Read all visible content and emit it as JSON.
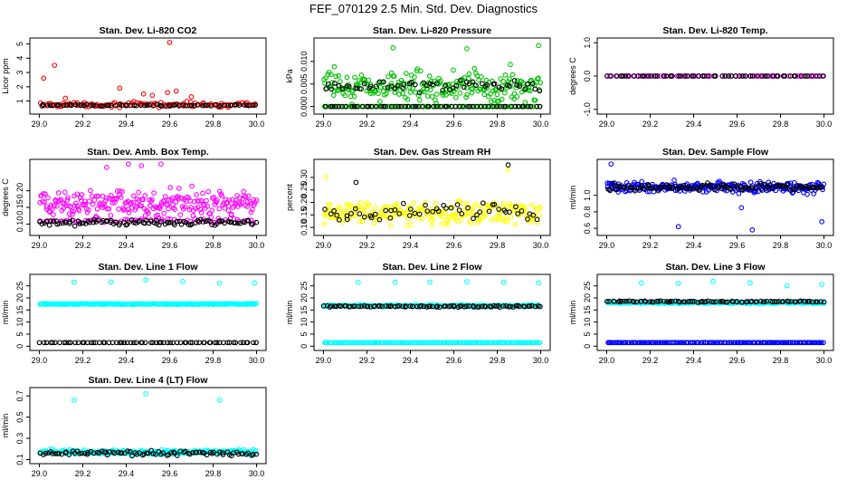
{
  "page_title": "FEF_070129  2.5 Min. Std. Dev. Diagnostics",
  "colors": {
    "red": "#ff0000",
    "green": "#00c000",
    "magenta": "#ff00ff",
    "yellow": "#ffff00",
    "blue": "#0000ff",
    "cyan": "#00ffff",
    "black": "#000000"
  },
  "chart_data": [
    {
      "type": "scatter",
      "title": "Stan. Dev. Li-820 CO2",
      "ylabel": "Licor ppm",
      "xlim": [
        29.0,
        30.0
      ],
      "ylim": [
        0.3,
        5.2
      ],
      "xticks": [
        "29.0",
        "29.2",
        "29.4",
        "29.6",
        "29.8",
        "30.0"
      ],
      "yticks": [
        "1",
        "2",
        "3",
        "4",
        "5"
      ],
      "series": [
        {
          "color": "red",
          "base": 0.75,
          "spread": 0.25,
          "n": 110,
          "outliers": [
            [
              29.02,
              2.6
            ],
            [
              29.07,
              3.5
            ],
            [
              29.6,
              5.1
            ],
            [
              29.37,
              1.9
            ],
            [
              29.48,
              1.5
            ],
            [
              29.59,
              1.6
            ],
            [
              29.63,
              1.7
            ],
            [
              29.12,
              1.2
            ],
            [
              29.52,
              1.4
            ],
            [
              29.7,
              1.3
            ]
          ]
        },
        {
          "color": "black",
          "base": 0.7,
          "spread": 0.08,
          "n": 70,
          "outliers": []
        }
      ]
    },
    {
      "type": "scatter",
      "title": "Stan. Dev. Li-820 Pressure",
      "ylabel": "kPa",
      "xlim": [
        29.0,
        30.0
      ],
      "ylim": [
        -0.001,
        0.0145
      ],
      "xticks": [
        "29.0",
        "29.2",
        "29.4",
        "29.6",
        "29.8",
        "30.0"
      ],
      "yticks": [
        "0.000",
        "0.005",
        "0.010"
      ],
      "series": [
        {
          "color": "green",
          "base": 0.0045,
          "spread": 0.0045,
          "n": 230,
          "outliers": [
            [
              29.32,
              0.013
            ],
            [
              29.66,
              0.0128
            ],
            [
              29.99,
              0.0135
            ],
            [
              29.86,
              0.0093
            ],
            [
              29.05,
              0.0088
            ]
          ]
        },
        {
          "color": "green",
          "base": 0.0,
          "spread": 0.0,
          "n": 80,
          "outliers": []
        },
        {
          "color": "black",
          "base": 0.0,
          "spread": 0.0,
          "n": 60,
          "outliers": []
        },
        {
          "color": "black",
          "base": 0.0045,
          "spread": 0.0015,
          "n": 60,
          "outliers": []
        }
      ]
    },
    {
      "type": "scatter",
      "title": "Stan. Dev. Li-820 Temp.",
      "ylabel": "degrees C",
      "xlim": [
        29.0,
        30.0
      ],
      "ylim": [
        -1.05,
        1.05
      ],
      "xticks": [
        "29.0",
        "29.2",
        "29.4",
        "29.6",
        "29.8",
        "30.0"
      ],
      "yticks": [
        "-1.0",
        "0.0",
        "1.0"
      ],
      "series": [
        {
          "color": "magenta",
          "base": 0.0,
          "spread": 0.0,
          "n": 60,
          "outliers": []
        },
        {
          "color": "black",
          "base": 0.0,
          "spread": 0.0,
          "n": 60,
          "outliers": []
        }
      ]
    },
    {
      "type": "scatter",
      "title": "Stan. Dev. Amb. Box Temp.",
      "ylabel": "degrees C",
      "xlim": [
        29.0,
        30.0
      ],
      "ylim": [
        0.075,
        0.285
      ],
      "xticks": [
        "29.0",
        "29.2",
        "29.4",
        "29.6",
        "29.8",
        "30.0"
      ],
      "yticks": [
        "0.10",
        "0.15",
        "0.20"
      ],
      "series": [
        {
          "color": "magenta",
          "base": 0.16,
          "spread": 0.06,
          "n": 240,
          "outliers": [
            [
              29.41,
              0.28
            ],
            [
              29.47,
              0.275
            ],
            [
              29.56,
              0.28
            ],
            [
              29.31,
              0.27
            ]
          ]
        },
        {
          "color": "magenta",
          "base": 0.11,
          "spread": 0.01,
          "n": 60,
          "outliers": []
        },
        {
          "color": "black",
          "base": 0.105,
          "spread": 0.012,
          "n": 100,
          "outliers": []
        }
      ]
    },
    {
      "type": "scatter",
      "title": "Stan. Dev. Gas Stream RH",
      "ylabel": "percent",
      "xlim": [
        29.0,
        30.0
      ],
      "ylim": [
        0.08,
        0.36
      ],
      "xticks": [
        "29.0",
        "29.2",
        "29.4",
        "29.6",
        "29.8",
        "30.0"
      ],
      "yticks": [
        "0.10",
        "0.15",
        "0.20",
        "0.25",
        "0.30"
      ],
      "series": [
        {
          "color": "yellow",
          "base": 0.16,
          "spread": 0.065,
          "n": 240,
          "outliers": [
            [
              29.01,
              0.3
            ],
            [
              29.5,
              0.11
            ],
            [
              29.85,
              0.33
            ]
          ]
        },
        {
          "color": "black",
          "base": 0.16,
          "spread": 0.06,
          "n": 55,
          "outliers": [
            [
              29.85,
              0.35
            ],
            [
              29.15,
              0.28
            ]
          ]
        }
      ]
    },
    {
      "type": "scatter",
      "title": "Stan. Dev. Sample Flow",
      "ylabel": "ml/min",
      "xlim": [
        29.0,
        30.0
      ],
      "ylim": [
        0.55,
        1.4
      ],
      "xticks": [
        "29.0",
        "29.2",
        "29.4",
        "29.6",
        "29.8",
        "30.0"
      ],
      "yticks": [
        "0.6",
        "0.8",
        "1.0"
      ],
      "series": [
        {
          "color": "blue",
          "base": 1.1,
          "spread": 0.1,
          "n": 260,
          "outliers": [
            [
              29.33,
              0.62
            ],
            [
              29.67,
              0.58
            ],
            [
              29.99,
              0.68
            ],
            [
              29.62,
              0.85
            ],
            [
              29.02,
              1.38
            ]
          ]
        },
        {
          "color": "black",
          "base": 1.1,
          "spread": 0.06,
          "n": 100,
          "outliers": []
        }
      ]
    },
    {
      "type": "scatter",
      "title": "Stan. Dev. Line 1 Flow",
      "ylabel": "ml/min",
      "xlim": [
        29.0,
        30.0
      ],
      "ylim": [
        -0.5,
        28.5
      ],
      "xticks": [
        "29.0",
        "29.2",
        "29.4",
        "29.6",
        "29.8",
        "30.0"
      ],
      "yticks": [
        "0",
        "5",
        "10",
        "15",
        "20",
        "25"
      ],
      "series": [
        {
          "color": "cyan",
          "base": 17.5,
          "spread": 0.3,
          "n": 220,
          "outliers": [
            [
              29.16,
              26.5
            ],
            [
              29.33,
              26.6
            ],
            [
              29.49,
              27.5
            ],
            [
              29.66,
              26.8
            ],
            [
              29.83,
              26.1
            ],
            [
              29.99,
              26.2
            ]
          ]
        },
        {
          "color": "black",
          "base": 1.5,
          "spread": 0.0,
          "n": 70,
          "outliers": []
        }
      ]
    },
    {
      "type": "scatter",
      "title": "Stan. Dev. Line 2 Flow",
      "ylabel": "ml/min",
      "xlim": [
        29.0,
        30.0
      ],
      "ylim": [
        -0.5,
        28.5
      ],
      "xticks": [
        "29.0",
        "29.2",
        "29.4",
        "29.6",
        "29.8",
        "30.0"
      ],
      "yticks": [
        "0",
        "5",
        "10",
        "15",
        "20",
        "25"
      ],
      "series": [
        {
          "color": "cyan",
          "base": 16.8,
          "spread": 0.6,
          "n": 160,
          "outliers": [
            [
              29.16,
              26.4
            ],
            [
              29.33,
              26.5
            ],
            [
              29.49,
              26.6
            ],
            [
              29.66,
              26.7
            ],
            [
              29.83,
              26.5
            ],
            [
              29.99,
              26.3
            ]
          ]
        },
        {
          "color": "cyan",
          "base": 1.5,
          "spread": 0.0,
          "n": 150,
          "outliers": []
        },
        {
          "color": "black",
          "base": 16.5,
          "spread": 0.5,
          "n": 90,
          "outliers": []
        }
      ]
    },
    {
      "type": "scatter",
      "title": "Stan. Dev. Line 3 Flow",
      "ylabel": "ml/min",
      "xlim": [
        29.0,
        30.0
      ],
      "ylim": [
        -0.5,
        28.5
      ],
      "xticks": [
        "29.0",
        "29.2",
        "29.4",
        "29.6",
        "29.8",
        "30.0"
      ],
      "yticks": [
        "0",
        "5",
        "10",
        "15",
        "20",
        "25"
      ],
      "series": [
        {
          "color": "cyan",
          "base": 18.0,
          "spread": 0.5,
          "n": 160,
          "outliers": [
            [
              29.16,
              26.2
            ],
            [
              29.33,
              26.0
            ],
            [
              29.49,
              26.9
            ],
            [
              29.66,
              26.3
            ],
            [
              29.83,
              25.0
            ],
            [
              29.99,
              25.6
            ]
          ]
        },
        {
          "color": "blue",
          "base": 1.5,
          "spread": 0.0,
          "n": 150,
          "outliers": []
        },
        {
          "color": "black",
          "base": 18.5,
          "spread": 0.4,
          "n": 90,
          "outliers": []
        }
      ]
    },
    {
      "type": "scatter",
      "title": "Stan. Dev. Line 4 (LT) Flow",
      "ylabel": "ml/min",
      "xlim": [
        29.0,
        30.0
      ],
      "ylim": [
        0.09,
        0.75
      ],
      "xticks": [
        "29.0",
        "29.2",
        "29.4",
        "29.6",
        "29.8",
        "30.0"
      ],
      "yticks": [
        "0.1",
        "0.3",
        "0.5",
        "0.7"
      ],
      "series": [
        {
          "color": "cyan",
          "base": 0.17,
          "spread": 0.03,
          "n": 220,
          "outliers": [
            [
              29.16,
              0.66
            ],
            [
              29.49,
              0.72
            ],
            [
              29.83,
              0.66
            ],
            [
              29.06,
              0.2
            ]
          ]
        },
        {
          "color": "black",
          "base": 0.16,
          "spread": 0.03,
          "n": 90,
          "outliers": []
        }
      ]
    }
  ]
}
